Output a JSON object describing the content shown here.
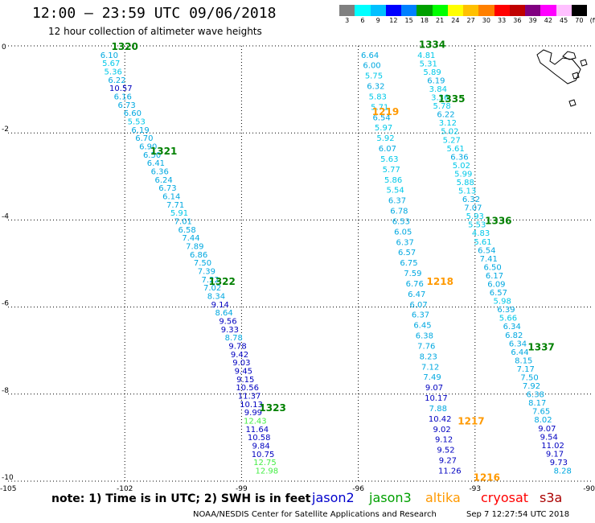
{
  "header": {
    "title": "12:00 – 23:59 UTC 09/06/2018",
    "subtitle": "12 hour collection of altimeter wave heights"
  },
  "colorbar": {
    "labels": [
      "3",
      "6",
      "9",
      "12",
      "15",
      "18",
      "21",
      "24",
      "27",
      "30",
      "33",
      "36",
      "39",
      "42",
      "45",
      "70",
      "(ft)"
    ],
    "colors": [
      "#808080",
      "#00ffff",
      "#00c0ff",
      "#0000ff",
      "#0080ff",
      "#00a000",
      "#00ff00",
      "#ffff00",
      "#ffc000",
      "#ff8000",
      "#ff0000",
      "#c00000",
      "#800080",
      "#ff00ff",
      "#ffc0ff",
      "#000000"
    ]
  },
  "chart_data": {
    "type": "scatter",
    "xlabel": "",
    "ylabel": "",
    "xlim": [
      -105,
      -90
    ],
    "ylim": [
      -10,
      0
    ],
    "x_ticks": [
      "-105",
      "-102",
      "-99",
      "-96",
      "-93",
      "-90"
    ],
    "y_ticks": [
      "0",
      "-2",
      "-4",
      "-6",
      "-8",
      "-10"
    ],
    "grid": true,
    "passes": [
      {
        "label": "1320",
        "satellite": "jason3",
        "lon": -102.0,
        "lat": 0.0
      },
      {
        "label": "1321",
        "satellite": "jason3",
        "lon": -101.0,
        "lat": -2.4
      },
      {
        "label": "1322",
        "satellite": "jason3",
        "lon": -99.5,
        "lat": -5.4
      },
      {
        "label": "1323",
        "satellite": "jason3",
        "lon": -98.2,
        "lat": -8.3
      },
      {
        "label": "1334",
        "satellite": "jason3",
        "lon": -94.1,
        "lat": 0.05
      },
      {
        "label": "1335",
        "satellite": "jason3",
        "lon": -93.6,
        "lat": -1.2
      },
      {
        "label": "1336",
        "satellite": "jason3",
        "lon": -92.4,
        "lat": -4.0
      },
      {
        "label": "1337",
        "satellite": "jason3",
        "lon": -91.3,
        "lat": -6.9
      },
      {
        "label": "1219",
        "satellite": "altika",
        "lon": -95.3,
        "lat": -1.5
      },
      {
        "label": "1218",
        "satellite": "altika",
        "lon": -93.9,
        "lat": -5.4
      },
      {
        "label": "1217",
        "satellite": "altika",
        "lon": -93.1,
        "lat": -8.6
      },
      {
        "label": "1216",
        "satellite": "altika",
        "lon": -92.7,
        "lat": -9.9
      }
    ],
    "tracks": [
      {
        "satellite": "jason3",
        "values": [
          "6.10",
          "5.67",
          "5.36",
          "6.22",
          "10.57",
          "6.16",
          "6.73",
          "6.60",
          "5.53",
          "6.19",
          "6.70",
          "6.90",
          "6.50",
          "6.41",
          "6.36",
          "6.24",
          "6.73",
          "6.14",
          "7.71",
          "5.91",
          "7.01",
          "6.58",
          "7.44",
          "7.89",
          "6.86",
          "7.50",
          "7.39",
          "7.22",
          "7.02",
          "8.34",
          "9.14",
          "8.64",
          "9.56",
          "9.33",
          "8.78",
          "9.78",
          "9.42",
          "9.03",
          "9.45",
          "9.15",
          "10.56",
          "11.37",
          "10.13",
          "9.99",
          "12.43",
          "11.64",
          "10.58",
          "9.84",
          "10.75",
          "12.75",
          "12.98"
        ],
        "lon": [
          -102.4,
          -102.35,
          -102.3,
          -102.2,
          -102.1,
          -102.05,
          -101.95,
          -101.8,
          -101.7,
          -101.6,
          -101.5,
          -101.4,
          -101.3,
          -101.2,
          -101.1,
          -101.0,
          -100.9,
          -100.8,
          -100.7,
          -100.6,
          -100.5,
          -100.4,
          -100.3,
          -100.2,
          -100.1,
          -100.0,
          -99.9,
          -99.8,
          -99.75,
          -99.65,
          -99.55,
          -99.45,
          -99.35,
          -99.3,
          -99.2,
          -99.1,
          -99.05,
          -99.0,
          -98.95,
          -98.9,
          -98.85,
          -98.8,
          -98.75,
          -98.7,
          -98.65,
          -98.6,
          -98.55,
          -98.5,
          -98.45,
          -98.4,
          -98.35
        ]
      },
      {
        "satellite": "jason3",
        "values": [
          "6.64",
          "6.00",
          "5.75",
          "6.32",
          "5.83",
          "5.71",
          "6.54",
          "5.97",
          "5.92",
          "6.07",
          "5.63",
          "5.77",
          "5.86",
          "5.54",
          "6.37",
          "6.78",
          "6.53",
          "6.05",
          "6.37",
          "6.57",
          "6.75",
          "7.59",
          "6.76",
          "6.47",
          "6.07",
          "6.37",
          "6.45",
          "6.38",
          "7.76",
          "8.23",
          "7.12",
          "7.49",
          "9.07",
          "10.17",
          "7.88",
          "10.42",
          "9.02",
          "9.12",
          "9.52",
          "9.27",
          "11.26"
        ],
        "lon": [
          -95.7,
          -95.65,
          -95.6,
          -95.55,
          -95.5,
          -95.45,
          -95.4,
          -95.35,
          -95.3,
          -95.25,
          -95.2,
          -95.15,
          -95.1,
          -95.05,
          -95.0,
          -94.95,
          -94.9,
          -94.85,
          -94.8,
          -94.75,
          -94.7,
          -94.6,
          -94.55,
          -94.5,
          -94.45,
          -94.4,
          -94.35,
          -94.3,
          -94.25,
          -94.2,
          -94.15,
          -94.1,
          -94.05,
          -94.0,
          -93.95,
          -93.9,
          -93.85,
          -93.8,
          -93.75,
          -93.7,
          -93.65
        ]
      },
      {
        "satellite": "jason3",
        "values": [
          "4.81",
          "5.31",
          "5.89",
          "6.19",
          "3.84",
          "3.36",
          "5.78",
          "6.22",
          "3.12",
          "5.02",
          "5.27",
          "5.61",
          "6.36",
          "5.02",
          "5.99",
          "5.88",
          "5.13",
          "6.32",
          "7.07",
          "5.93",
          "5.53",
          "4.83",
          "5.61",
          "6.54",
          "7.41",
          "6.50",
          "6.17",
          "6.09",
          "6.57",
          "5.98",
          "6.39",
          "5.66",
          "6.34",
          "6.82",
          "6.34",
          "6.44",
          "8.15",
          "7.17",
          "7.50",
          "7.92",
          "6.38",
          "8.17",
          "7.65",
          "8.02",
          "9.07",
          "9.54",
          "11.02",
          "9.17",
          "9.73",
          "8.28"
        ],
        "lon": [
          -94.25,
          -94.2,
          -94.1,
          -94.0,
          -93.95,
          -93.9,
          -93.85,
          -93.75,
          -93.7,
          -93.65,
          -93.6,
          -93.5,
          -93.4,
          -93.35,
          -93.3,
          -93.25,
          -93.2,
          -93.1,
          -93.05,
          -93.0,
          -92.95,
          -92.85,
          -92.8,
          -92.7,
          -92.65,
          -92.55,
          -92.5,
          -92.45,
          -92.4,
          -92.3,
          -92.2,
          -92.15,
          -92.05,
          -92.0,
          -91.9,
          -91.85,
          -91.75,
          -91.7,
          -91.6,
          -91.55,
          -91.45,
          -91.4,
          -91.3,
          -91.25,
          -91.15,
          -91.1,
          -91.0,
          -90.95,
          -90.85,
          -90.75
        ]
      }
    ]
  },
  "footer": {
    "note": "note:  1) Time is in UTC;  2) SWH is in feet",
    "legend": [
      {
        "name": "jason2",
        "color": "#0000cc"
      },
      {
        "name": "jason3",
        "color": "#00a000"
      },
      {
        "name": "altika",
        "color": "#ff9900"
      },
      {
        "name": "cryosat",
        "color": "#ff0000"
      },
      {
        "name": "s3a",
        "color": "#aa0000"
      }
    ],
    "credit": "NOAA/NESDIS Center for Satellite Applications and Research",
    "timestamp": "Sep  7 12:27:54 UTC 2018"
  }
}
